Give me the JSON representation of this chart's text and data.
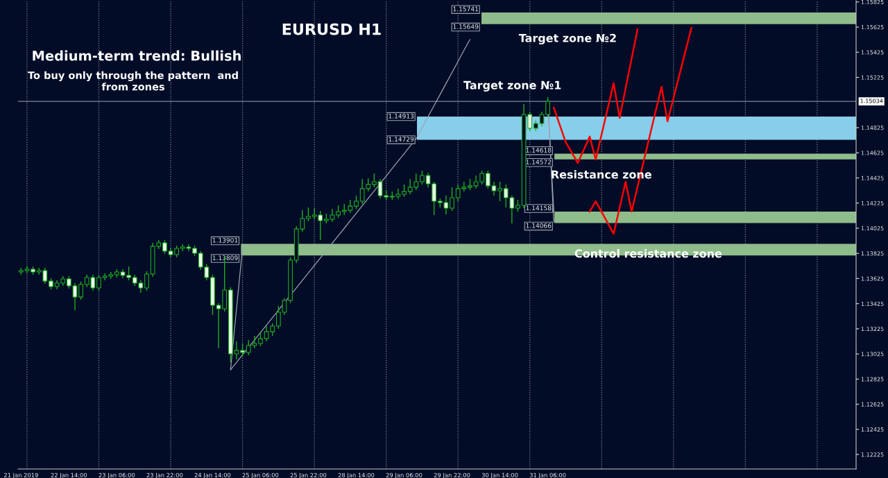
{
  "chart_data": {
    "type": "candlestick",
    "title": "EURUSD H1",
    "subtitle": "Medium-term trend: Bullish",
    "annotations": [
      "To buy only through the pattern  and\nfrom zones",
      "1.15741",
      "1.15649",
      "1.14913",
      "1.14729",
      "1.14618",
      "1.14572",
      "1.14158",
      "1.14066",
      "1.13901",
      "1.13809"
    ],
    "categories": [
      "21 Jan 2019",
      null,
      null,
      null,
      null,
      null,
      null,
      null,
      "22 Jan 14:00",
      null,
      null,
      null,
      null,
      null,
      null,
      null,
      "23 Jan 06:00",
      null,
      null,
      null,
      null,
      null,
      null,
      null,
      "23 Jan 22:00",
      null,
      null,
      null,
      null,
      null,
      null,
      null,
      "24 Jan 14:00",
      null,
      null,
      null,
      null,
      null,
      null,
      null,
      "25 Jan 06:00",
      null,
      null,
      null,
      null,
      null,
      null,
      null,
      "25 Jan 22:00",
      null,
      null,
      null,
      null,
      null,
      null,
      null,
      "28 Jan 14:00",
      null,
      null,
      null,
      null,
      null,
      null,
      null,
      "29 Jan 06:00",
      null,
      null,
      null,
      null,
      null,
      null,
      null,
      "29 Jan 22:00",
      null,
      null,
      null,
      null,
      null,
      null,
      null,
      "30 Jan 14:00",
      null,
      null,
      null,
      null,
      null,
      null,
      null,
      "31 Jan 06:00",
      null,
      null,
      null,
      null,
      null,
      null,
      null,
      null,
      null,
      null,
      null,
      null,
      null,
      null,
      null,
      null,
      null,
      null,
      null,
      null,
      null,
      null,
      null,
      null,
      null,
      null,
      null,
      null,
      null,
      null,
      null,
      null,
      null,
      null,
      null,
      null,
      null,
      null,
      null,
      null,
      null,
      null,
      null,
      null,
      null,
      null,
      null,
      null,
      null,
      null,
      null
    ],
    "ohlc": [
      [
        1.13677,
        1.1371,
        1.13655,
        1.13688
      ],
      [
        1.13688,
        1.13721,
        1.13666,
        1.13699
      ],
      [
        1.13699,
        1.13721,
        1.13655,
        1.13677
      ],
      [
        1.13677,
        1.1371,
        1.13655,
        1.13688
      ],
      [
        1.13688,
        1.1371,
        1.13583,
        1.13605
      ],
      [
        1.13605,
        1.13628,
        1.13539,
        1.13561
      ],
      [
        1.13561,
        1.13611,
        1.13539,
        1.13589
      ],
      [
        1.13589,
        1.13644,
        1.13567,
        1.13622
      ],
      [
        1.13622,
        1.13644,
        1.13545,
        1.13567
      ],
      [
        1.13567,
        1.13589,
        1.13374,
        1.13478
      ],
      [
        1.13478,
        1.136,
        1.13456,
        1.13578
      ],
      [
        1.13578,
        1.13655,
        1.13556,
        1.13633
      ],
      [
        1.13633,
        1.13655,
        1.13528,
        1.1355
      ],
      [
        1.1355,
        1.13655,
        1.13528,
        1.13633
      ],
      [
        1.13633,
        1.13666,
        1.13611,
        1.13644
      ],
      [
        1.13644,
        1.13677,
        1.13622,
        1.13655
      ],
      [
        1.13655,
        1.13699,
        1.13633,
        1.13677
      ],
      [
        1.13677,
        1.13699,
        1.13628,
        1.1365
      ],
      [
        1.1365,
        1.13721,
        1.13611,
        1.13633
      ],
      [
        1.13633,
        1.13655,
        1.13567,
        1.13589
      ],
      [
        1.13589,
        1.13611,
        1.13512,
        1.1355
      ],
      [
        1.1355,
        1.13683,
        1.13528,
        1.13661
      ],
      [
        1.13661,
        1.13909,
        1.13639,
        1.13881
      ],
      [
        1.13881,
        1.13931,
        1.13859,
        1.13909
      ],
      [
        1.13909,
        1.13931,
        1.13821,
        1.13843
      ],
      [
        1.13843,
        1.13865,
        1.13793,
        1.13815
      ],
      [
        1.13815,
        1.13887,
        1.13793,
        1.13865
      ],
      [
        1.13865,
        1.13898,
        1.13843,
        1.13876
      ],
      [
        1.13876,
        1.13898,
        1.13843,
        1.13865
      ],
      [
        1.13865,
        1.13887,
        1.13804,
        1.13826
      ],
      [
        1.13826,
        1.13843,
        1.13694,
        1.13716
      ],
      [
        1.13716,
        1.13738,
        1.13611,
        1.13633
      ],
      [
        1.13633,
        1.13655,
        1.13335,
        1.13412
      ],
      [
        1.13412,
        1.13429,
        1.1307,
        1.13385
      ],
      [
        1.13385,
        1.13804,
        1.13363,
        1.13534
      ],
      [
        1.13534,
        1.13556,
        1.1296,
        1.13026
      ],
      [
        1.13026,
        1.13125,
        1.12982,
        1.13053
      ],
      [
        1.13053,
        1.13109,
        1.13004,
        1.13037
      ],
      [
        1.13037,
        1.13136,
        1.13015,
        1.13092
      ],
      [
        1.13092,
        1.13169,
        1.1307,
        1.13109
      ],
      [
        1.13109,
        1.13202,
        1.13087,
        1.13147
      ],
      [
        1.13147,
        1.13247,
        1.13125,
        1.13202
      ],
      [
        1.13202,
        1.13269,
        1.13169,
        1.13247
      ],
      [
        1.13247,
        1.13407,
        1.13225,
        1.13357
      ],
      [
        1.13357,
        1.13467,
        1.13335,
        1.13451
      ],
      [
        1.13451,
        1.13793,
        1.13429,
        1.13771
      ],
      [
        1.13771,
        1.14042,
        1.13749,
        1.14019
      ],
      [
        1.14019,
        1.14168,
        1.13997,
        1.14102
      ],
      [
        1.14102,
        1.1419,
        1.1408,
        1.14119
      ],
      [
        1.14119,
        1.14185,
        1.14097,
        1.1413
      ],
      [
        1.1413,
        1.14163,
        1.13931,
        1.14086
      ],
      [
        1.14086,
        1.14141,
        1.14064,
        1.14097
      ],
      [
        1.14097,
        1.14179,
        1.14075,
        1.1413
      ],
      [
        1.1413,
        1.14207,
        1.14108,
        1.14157
      ],
      [
        1.14157,
        1.14218,
        1.1413,
        1.14168
      ],
      [
        1.14168,
        1.14251,
        1.14146,
        1.14201
      ],
      [
        1.14201,
        1.14284,
        1.14179,
        1.1424
      ],
      [
        1.1424,
        1.14417,
        1.14218,
        1.1434
      ],
      [
        1.1434,
        1.14422,
        1.14317,
        1.14373
      ],
      [
        1.14373,
        1.14461,
        1.14351,
        1.14395
      ],
      [
        1.14395,
        1.14417,
        1.14262,
        1.14284
      ],
      [
        1.14284,
        1.14328,
        1.14251,
        1.14273
      ],
      [
        1.14273,
        1.14317,
        1.14251,
        1.14279
      ],
      [
        1.14279,
        1.1434,
        1.14257,
        1.14295
      ],
      [
        1.14295,
        1.14373,
        1.14273,
        1.14317
      ],
      [
        1.14317,
        1.14417,
        1.14295,
        1.14351
      ],
      [
        1.14351,
        1.14461,
        1.14328,
        1.14395
      ],
      [
        1.14395,
        1.14483,
        1.14373,
        1.14444
      ],
      [
        1.14444,
        1.14467,
        1.14351,
        1.14378
      ],
      [
        1.14378,
        1.14395,
        1.1413,
        1.1424
      ],
      [
        1.1424,
        1.14262,
        1.1419,
        1.14229
      ],
      [
        1.14229,
        1.14284,
        1.14135,
        1.14185
      ],
      [
        1.14185,
        1.14351,
        1.14163,
        1.14268
      ],
      [
        1.14268,
        1.14373,
        1.1424,
        1.1434
      ],
      [
        1.1434,
        1.14395,
        1.14317,
        1.14351
      ],
      [
        1.14351,
        1.14417,
        1.14328,
        1.14362
      ],
      [
        1.14362,
        1.14444,
        1.1434,
        1.14395
      ],
      [
        1.14395,
        1.14483,
        1.14373,
        1.14461
      ],
      [
        1.14461,
        1.14483,
        1.1434,
        1.14362
      ],
      [
        1.14362,
        1.14395,
        1.14284,
        1.14323
      ],
      [
        1.14323,
        1.14395,
        1.1424,
        1.1434
      ],
      [
        1.1434,
        1.14373,
        1.1419,
        1.14268
      ],
      [
        1.14268,
        1.14284,
        1.14064,
        1.14185
      ],
      [
        1.14185,
        1.14251,
        1.14157,
        1.14207
      ],
      [
        1.14207,
        1.15013,
        1.14185,
        1.1493
      ],
      [
        1.1493,
        1.14952,
        1.14798,
        1.1482
      ],
      [
        1.1482,
        1.14881,
        1.14798,
        1.14858
      ],
      [
        1.14858,
        1.14952,
        1.14836,
        1.1493
      ],
      [
        1.1493,
        1.15068,
        1.14908,
        1.15035
      ],
      null,
      null,
      null,
      null,
      null,
      null,
      null,
      null,
      null,
      null,
      null,
      null,
      null,
      null,
      null,
      null,
      null,
      null,
      null,
      null,
      null,
      null,
      null,
      null,
      null,
      null,
      null,
      null,
      null,
      null,
      null,
      null,
      null,
      null,
      null,
      null,
      null,
      null,
      null,
      null,
      null,
      null,
      null,
      null,
      null,
      null,
      null,
      null,
      null,
      null,
      null
    ],
    "series": [
      {
        "type": "line",
        "color": "#ff0000",
        "values": [
          null,
          null,
          null,
          null,
          null,
          null,
          null,
          null,
          null,
          null,
          null,
          null,
          null,
          null,
          null,
          null,
          null,
          null,
          null,
          null,
          null,
          null,
          null,
          null,
          null,
          null,
          null,
          null,
          null,
          null,
          null,
          null,
          null,
          null,
          null,
          null,
          null,
          null,
          null,
          null,
          null,
          null,
          null,
          null,
          null,
          null,
          null,
          null,
          null,
          null,
          null,
          null,
          null,
          null,
          null,
          null,
          null,
          null,
          null,
          null,
          null,
          null,
          null,
          null,
          null,
          null,
          null,
          null,
          null,
          null,
          null,
          null,
          null,
          null,
          null,
          null,
          null,
          null,
          null,
          null,
          null,
          null,
          null,
          null,
          null,
          null,
          null,
          null,
          null,
          1.14985,
          1.14847,
          1.14709,
          1.14627,
          1.14544,
          1.14649,
          1.14754,
          1.14571,
          1.14774,
          1.14976,
          1.15179,
          1.14903,
          1.15138,
          1.15374,
          1.15609,
          null,
          null,
          null,
          null,
          null,
          null,
          null,
          null,
          null,
          null,
          null,
          null,
          null,
          null,
          null,
          null,
          null,
          null,
          null,
          null,
          null,
          null,
          null,
          null,
          null,
          null,
          null,
          null,
          null,
          null,
          null,
          null,
          null,
          null,
          null,
          null
        ]
      },
      {
        "type": "line",
        "color": "#ff0000",
        "values": [
          null,
          null,
          null,
          null,
          null,
          null,
          null,
          null,
          null,
          null,
          null,
          null,
          null,
          null,
          null,
          null,
          null,
          null,
          null,
          null,
          null,
          null,
          null,
          null,
          null,
          null,
          null,
          null,
          null,
          null,
          null,
          null,
          null,
          null,
          null,
          null,
          null,
          null,
          null,
          null,
          null,
          null,
          null,
          null,
          null,
          null,
          null,
          null,
          null,
          null,
          null,
          null,
          null,
          null,
          null,
          null,
          null,
          null,
          null,
          null,
          null,
          null,
          null,
          null,
          null,
          null,
          null,
          null,
          null,
          null,
          null,
          null,
          null,
          null,
          null,
          null,
          null,
          null,
          null,
          null,
          null,
          null,
          null,
          null,
          null,
          null,
          null,
          null,
          null,
          null,
          null,
          null,
          null,
          null,
          null,
          1.14157,
          1.1424,
          1.14154,
          1.14067,
          1.13981,
          1.14188,
          1.14395,
          1.14157,
          1.14356,
          1.14555,
          1.14754,
          1.14952,
          1.15151,
          1.14875,
          1.15061,
          1.15248,
          1.15434,
          1.1562,
          null,
          null,
          null,
          null,
          null,
          null,
          null,
          null,
          null,
          null,
          null,
          null,
          null,
          null,
          null,
          null,
          null,
          null,
          null,
          null,
          null,
          null,
          null,
          null,
          null,
          null,
          null
        ]
      },
      {
        "type": "line",
        "color": "#9aa3ad",
        "values": [
          null,
          null,
          null,
          null,
          null,
          null,
          null,
          null,
          null,
          null,
          null,
          null,
          null,
          null,
          null,
          null,
          null,
          null,
          null,
          null,
          null,
          null,
          null,
          null,
          null,
          null,
          null,
          null,
          null,
          null,
          null,
          null,
          null,
          null,
          null,
          1.12899,
          1.13385,
          1.1387,
          null,
          null,
          null,
          null,
          null,
          null,
          null,
          null,
          null,
          null,
          null,
          null,
          null,
          null,
          null,
          null,
          null,
          null,
          null,
          null,
          null,
          null,
          null,
          null,
          null,
          null,
          null,
          null,
          null,
          null,
          null,
          null,
          null,
          null,
          null,
          null,
          null,
          null,
          null,
          null,
          null,
          null,
          null,
          null,
          null,
          null,
          null,
          null,
          null,
          null,
          null,
          null,
          null,
          null,
          null,
          null,
          null,
          null,
          null,
          null,
          null,
          null,
          null,
          null,
          null,
          null,
          null,
          null,
          null,
          null,
          null,
          null,
          null,
          null,
          null,
          null,
          null,
          null,
          null,
          null,
          null,
          null,
          null,
          null,
          null,
          null,
          null,
          null,
          null,
          null,
          null,
          null,
          null,
          null,
          null,
          null,
          null,
          null,
          null,
          null,
          null,
          null
        ]
      },
      {
        "type": "line",
        "color": "#9aa3ad",
        "values": [
          null,
          null,
          null,
          null,
          null,
          null,
          null,
          null,
          null,
          null,
          null,
          null,
          null,
          null,
          null,
          null,
          null,
          null,
          null,
          null,
          null,
          null,
          null,
          null,
          null,
          null,
          null,
          null,
          null,
          null,
          null,
          null,
          null,
          null,
          null,
          1.12899,
          1.12958,
          1.13018,
          1.13077,
          1.13136,
          1.13195,
          1.13255,
          1.13314,
          1.13373,
          1.13433,
          1.13492,
          1.13551,
          1.1361,
          1.1367,
          1.13729,
          1.13788,
          1.13848,
          1.13907,
          1.13966,
          1.14025,
          1.14085,
          1.14144,
          1.14203,
          1.14263,
          1.14322,
          1.14381,
          1.1444,
          1.145,
          1.14559,
          1.14618,
          1.14678,
          1.14737,
          1.14825,
          1.14913,
          1.15,
          1.15088,
          1.15176,
          1.15264,
          1.15352,
          1.1544,
          1.15527,
          null,
          null,
          null,
          null,
          null,
          null,
          null,
          null,
          null,
          null,
          null,
          null,
          null,
          null,
          null,
          null,
          null,
          null,
          null,
          null,
          null,
          null,
          null,
          null,
          null,
          null,
          null,
          null,
          null,
          null,
          null,
          null,
          null,
          null,
          null,
          null,
          null,
          null,
          null,
          null,
          null,
          null,
          null,
          null,
          null,
          null,
          null,
          null,
          null,
          null,
          null,
          null,
          null,
          null,
          null,
          null,
          null,
          null,
          null,
          null,
          null,
          null,
          null,
          null
        ]
      },
      {
        "type": "line",
        "color": "#9aa3ad",
        "values": [
          null,
          null,
          null,
          null,
          null,
          null,
          null,
          null,
          null,
          null,
          null,
          null,
          null,
          null,
          null,
          null,
          null,
          null,
          null,
          null,
          null,
          null,
          null,
          null,
          null,
          null,
          null,
          null,
          null,
          null,
          null,
          null,
          null,
          null,
          null,
          null,
          null,
          null,
          null,
          null,
          null,
          null,
          null,
          null,
          null,
          null,
          null,
          null,
          null,
          null,
          null,
          null,
          null,
          null,
          null,
          null,
          null,
          null,
          null,
          null,
          null,
          null,
          null,
          null,
          null,
          null,
          null,
          null,
          null,
          null,
          null,
          null,
          null,
          null,
          null,
          null,
          null,
          null,
          null,
          null,
          null,
          null,
          null,
          null,
          null,
          null,
          null,
          null,
          1.15041,
          1.14157,
          null,
          null,
          null,
          null,
          null,
          null,
          null,
          null,
          null,
          null,
          null,
          null,
          null,
          null,
          null,
          null,
          null,
          null,
          null,
          null,
          null,
          null,
          null,
          null,
          null,
          null,
          null,
          null,
          null,
          null,
          null,
          null,
          null,
          null,
          null,
          null,
          null,
          null,
          null,
          null,
          null,
          null,
          null,
          null,
          null,
          null,
          null,
          null,
          null,
          null
        ]
      },
      {
        "type": "line",
        "color": "#9aa3ad",
        "values": [
          null,
          null,
          null,
          null,
          null,
          null,
          null,
          null,
          null,
          null,
          null,
          null,
          null,
          null,
          null,
          null,
          null,
          null,
          null,
          null,
          null,
          null,
          null,
          null,
          null,
          null,
          null,
          null,
          null,
          null,
          null,
          null,
          null,
          null,
          null,
          null,
          null,
          null,
          null,
          null,
          null,
          null,
          null,
          null,
          null,
          null,
          null,
          null,
          null,
          null,
          null,
          null,
          null,
          null,
          null,
          null,
          null,
          null,
          null,
          null,
          null,
          null,
          null,
          null,
          null,
          null,
          null,
          null,
          null,
          null,
          null,
          null,
          null,
          null,
          null,
          null,
          null,
          null,
          null,
          null,
          null,
          null,
          null,
          null,
          null,
          null,
          null,
          null,
          1.15041,
          1.14075,
          null,
          null,
          null,
          null,
          null,
          null,
          null,
          null,
          null,
          null,
          null,
          null,
          null,
          null,
          null,
          null,
          null,
          null,
          null,
          null,
          null,
          null,
          null,
          null,
          null,
          null,
          null,
          null,
          null,
          null,
          null,
          null,
          null,
          null,
          null,
          null,
          null,
          null,
          null,
          null,
          null,
          null,
          null,
          null,
          null,
          null,
          null,
          null,
          null,
          null
        ]
      }
    ],
    "bands": [
      {
        "axis": "y",
        "from": 1.15649,
        "to": 1.15741,
        "label": "Target zone №2",
        "color": "#8fbc8b"
      },
      {
        "axis": "y",
        "from": 1.14729,
        "to": 1.14913,
        "label": "Target zone №1",
        "color": "#87ceeb"
      },
      {
        "axis": "y",
        "from": 1.14572,
        "to": 1.14618,
        "label": "Resistance zone",
        "color": "#8fbc8b"
      },
      {
        "axis": "y",
        "from": 1.14066,
        "to": 1.14158,
        "label": "Control resistance zone",
        "color": "#8fbc8b"
      },
      {
        "axis": "y",
        "from": 1.13809,
        "to": 1.13901,
        "color": "#8fbc8b"
      }
    ],
    "ref_lines": [
      {
        "axis": "y",
        "value": 1.15034,
        "label": "1.15034",
        "color": "#7c8796",
        "line_style": "solid"
      }
    ],
    "ylim": [
      1.1211,
      1.15835
    ],
    "yticks": [
      1.12225,
      1.12425,
      1.12625,
      1.12825,
      1.13025,
      1.13225,
      1.13425,
      1.13625,
      1.13825,
      1.14025,
      1.14225,
      1.14425,
      1.14625,
      1.14825,
      1.15225,
      1.15425,
      1.15625,
      1.15825
    ],
    "grid": false,
    "legend": false
  }
}
